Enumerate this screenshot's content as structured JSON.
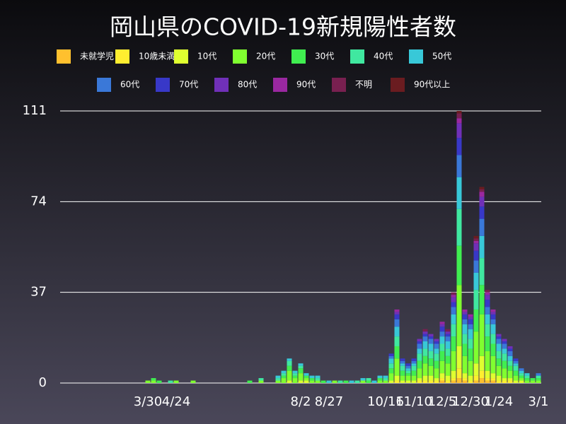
{
  "chart_data": {
    "type": "stacked-bar",
    "title": "岡山県のCOVID-19新規陽性者数",
    "categories": [
      null,
      null,
      null,
      null,
      null,
      null,
      null,
      null,
      null,
      null,
      null,
      null,
      null,
      null,
      null,
      "3/30",
      null,
      null,
      null,
      null,
      "4/24",
      null,
      null,
      null,
      null,
      null,
      null,
      null,
      null,
      null,
      null,
      null,
      null,
      null,
      null,
      null,
      null,
      null,
      null,
      null,
      null,
      null,
      "8/2",
      null,
      null,
      null,
      null,
      "8/27",
      null,
      null,
      null,
      null,
      null,
      null,
      null,
      null,
      null,
      "10/16",
      null,
      null,
      null,
      null,
      "11/10",
      null,
      null,
      null,
      null,
      "12/5",
      null,
      null,
      null,
      null,
      "12/30",
      null,
      null,
      null,
      null,
      "1/24",
      null,
      null,
      null,
      null,
      null,
      null,
      "3/1"
    ],
    "series": [
      {
        "name": "未就学児",
        "color": "#ffc02e",
        "values": [
          0,
          0,
          0,
          0,
          0,
          0,
          0,
          0,
          0,
          0,
          0,
          0,
          0,
          0,
          0,
          0,
          0,
          0,
          0,
          0,
          0,
          0,
          0,
          0,
          0,
          0,
          0,
          0,
          0,
          0,
          0,
          0,
          0,
          0,
          0,
          0,
          0,
          0,
          0,
          0,
          0,
          0,
          0,
          0,
          0,
          0,
          0,
          0,
          0,
          0,
          0,
          0,
          0,
          0,
          0,
          0,
          0,
          0,
          0,
          0,
          0,
          0,
          0,
          0,
          0,
          0,
          0,
          1,
          0,
          1,
          2,
          1,
          0,
          1,
          2,
          1,
          1,
          0,
          0,
          0,
          0,
          0,
          0,
          0,
          0
        ]
      },
      {
        "name": "10歳未満",
        "color": "#ffee30",
        "values": [
          0,
          0,
          0,
          0,
          0,
          0,
          0,
          0,
          0,
          0,
          0,
          0,
          0,
          0,
          0,
          0,
          0,
          0,
          0,
          0,
          0,
          0,
          0,
          0,
          0,
          0,
          0,
          0,
          0,
          0,
          0,
          0,
          0,
          0,
          0,
          0,
          0,
          0,
          0,
          0,
          0,
          0,
          0,
          0,
          0,
          0,
          0,
          0,
          0,
          0,
          0,
          0,
          0,
          0,
          0,
          0,
          0,
          0,
          0,
          1,
          0,
          0,
          0,
          1,
          1,
          1,
          1,
          1,
          1,
          1,
          4,
          1,
          1,
          2,
          3,
          1,
          1,
          1,
          1,
          1,
          0,
          0,
          0,
          0,
          0
        ]
      },
      {
        "name": "10代",
        "color": "#dfff30",
        "values": [
          0,
          0,
          0,
          0,
          0,
          0,
          0,
          0,
          0,
          0,
          0,
          0,
          0,
          0,
          0,
          0,
          0,
          0,
          0,
          0,
          0,
          0,
          0,
          0,
          0,
          0,
          0,
          0,
          0,
          0,
          0,
          0,
          0,
          0,
          0,
          0,
          0,
          0,
          0,
          0,
          1,
          0,
          1,
          1,
          0,
          0,
          0,
          0,
          0,
          0,
          0,
          0,
          0,
          0,
          0,
          0,
          0,
          0,
          1,
          2,
          1,
          1,
          1,
          1,
          2,
          2,
          1,
          2,
          2,
          3,
          9,
          2,
          2,
          5,
          6,
          3,
          2,
          2,
          1,
          1,
          1,
          1,
          0,
          0,
          0
        ]
      },
      {
        "name": "20代",
        "color": "#80ff30",
        "values": [
          0,
          0,
          0,
          0,
          0,
          0,
          0,
          0,
          0,
          0,
          0,
          0,
          0,
          0,
          0,
          1,
          1,
          0,
          0,
          0,
          1,
          0,
          0,
          1,
          0,
          0,
          0,
          0,
          0,
          0,
          0,
          0,
          0,
          0,
          0,
          1,
          0,
          0,
          1,
          2,
          4,
          2,
          3,
          1,
          1,
          1,
          0,
          0,
          1,
          0,
          0,
          0,
          0,
          1,
          0,
          0,
          1,
          1,
          3,
          7,
          2,
          2,
          2,
          4,
          5,
          4,
          4,
          5,
          5,
          8,
          25,
          7,
          6,
          13,
          17,
          8,
          7,
          4,
          4,
          3,
          2,
          1,
          1,
          1,
          1
        ]
      },
      {
        "name": "30代",
        "color": "#40ee50",
        "values": [
          0,
          0,
          0,
          0,
          0,
          0,
          0,
          0,
          0,
          0,
          0,
          0,
          0,
          0,
          0,
          0,
          1,
          1,
          0,
          0,
          0,
          0,
          0,
          0,
          0,
          0,
          0,
          0,
          0,
          0,
          0,
          0,
          0,
          1,
          0,
          0,
          0,
          0,
          0,
          1,
          2,
          1,
          2,
          1,
          1,
          0,
          1,
          0,
          0,
          0,
          1,
          0,
          0,
          0,
          1,
          0,
          1,
          0,
          2,
          5,
          2,
          1,
          2,
          3,
          3,
          3,
          3,
          4,
          3,
          6,
          16,
          5,
          5,
          9,
          12,
          6,
          5,
          3,
          3,
          2,
          2,
          1,
          1,
          1,
          1
        ]
      },
      {
        "name": "40代",
        "color": "#40e8a0",
        "values": [
          0,
          0,
          0,
          0,
          0,
          0,
          0,
          0,
          0,
          0,
          0,
          0,
          0,
          0,
          0,
          0,
          0,
          0,
          0,
          1,
          0,
          0,
          0,
          0,
          0,
          0,
          0,
          0,
          0,
          0,
          0,
          0,
          0,
          0,
          0,
          1,
          0,
          0,
          1,
          1,
          2,
          1,
          1,
          0,
          0,
          1,
          0,
          0,
          0,
          1,
          0,
          0,
          1,
          0,
          1,
          0,
          0,
          1,
          2,
          4,
          2,
          1,
          2,
          3,
          3,
          3,
          3,
          3,
          3,
          5,
          15,
          4,
          4,
          8,
          11,
          5,
          4,
          3,
          3,
          2,
          2,
          1,
          1,
          0,
          1
        ]
      },
      {
        "name": "50代",
        "color": "#38c8d8",
        "values": [
          0,
          0,
          0,
          0,
          0,
          0,
          0,
          0,
          0,
          0,
          0,
          0,
          0,
          0,
          0,
          0,
          0,
          0,
          0,
          0,
          0,
          0,
          0,
          0,
          0,
          0,
          0,
          0,
          0,
          0,
          0,
          0,
          0,
          0,
          0,
          0,
          0,
          0,
          1,
          1,
          1,
          1,
          1,
          1,
          1,
          1,
          0,
          1,
          0,
          0,
          0,
          1,
          0,
          1,
          0,
          1,
          1,
          1,
          2,
          4,
          1,
          1,
          1,
          2,
          3,
          3,
          2,
          3,
          3,
          4,
          13,
          4,
          4,
          7,
          9,
          4,
          4,
          3,
          2,
          2,
          1,
          1,
          1,
          0,
          0
        ]
      },
      {
        "name": "60代",
        "color": "#3a78d8",
        "values": [
          0,
          0,
          0,
          0,
          0,
          0,
          0,
          0,
          0,
          0,
          0,
          0,
          0,
          0,
          0,
          0,
          0,
          0,
          0,
          0,
          0,
          0,
          0,
          0,
          0,
          0,
          0,
          0,
          0,
          0,
          0,
          0,
          0,
          0,
          0,
          0,
          0,
          0,
          0,
          0,
          0,
          0,
          0,
          0,
          0,
          0,
          0,
          0,
          0,
          0,
          0,
          0,
          0,
          0,
          0,
          0,
          0,
          0,
          1,
          3,
          1,
          1,
          1,
          2,
          2,
          2,
          2,
          2,
          2,
          3,
          9,
          2,
          2,
          5,
          7,
          3,
          2,
          2,
          2,
          2,
          1,
          1,
          0,
          0,
          1
        ]
      },
      {
        "name": "70代",
        "color": "#3838c8",
        "values": [
          0,
          0,
          0,
          0,
          0,
          0,
          0,
          0,
          0,
          0,
          0,
          0,
          0,
          0,
          0,
          0,
          0,
          0,
          0,
          0,
          0,
          0,
          0,
          0,
          0,
          0,
          0,
          0,
          0,
          0,
          0,
          0,
          0,
          0,
          0,
          0,
          0,
          0,
          0,
          0,
          0,
          0,
          0,
          0,
          0,
          0,
          0,
          0,
          0,
          0,
          0,
          0,
          0,
          0,
          0,
          0,
          0,
          0,
          1,
          2,
          1,
          1,
          1,
          1,
          1,
          1,
          1,
          2,
          1,
          2,
          7,
          2,
          2,
          4,
          5,
          3,
          2,
          1,
          1,
          1,
          1,
          0,
          0,
          0,
          0
        ]
      },
      {
        "name": "80代",
        "color": "#7030b8",
        "values": [
          0,
          0,
          0,
          0,
          0,
          0,
          0,
          0,
          0,
          0,
          0,
          0,
          0,
          0,
          0,
          0,
          0,
          0,
          0,
          0,
          0,
          0,
          0,
          0,
          0,
          0,
          0,
          0,
          0,
          0,
          0,
          0,
          0,
          0,
          0,
          0,
          0,
          0,
          0,
          0,
          0,
          0,
          0,
          0,
          0,
          0,
          0,
          0,
          0,
          0,
          0,
          0,
          0,
          0,
          0,
          0,
          0,
          0,
          0,
          1,
          0,
          0,
          0,
          1,
          1,
          1,
          1,
          1,
          1,
          2,
          6,
          1,
          1,
          3,
          4,
          2,
          1,
          1,
          1,
          1,
          0,
          0,
          0,
          0,
          0
        ]
      },
      {
        "name": "90代",
        "color": "#9a28a0",
        "values": [
          0,
          0,
          0,
          0,
          0,
          0,
          0,
          0,
          0,
          0,
          0,
          0,
          0,
          0,
          0,
          0,
          0,
          0,
          0,
          0,
          0,
          0,
          0,
          0,
          0,
          0,
          0,
          0,
          0,
          0,
          0,
          0,
          0,
          0,
          0,
          0,
          0,
          0,
          0,
          0,
          0,
          0,
          0,
          0,
          0,
          0,
          0,
          0,
          0,
          0,
          0,
          0,
          0,
          0,
          0,
          0,
          0,
          0,
          0,
          1,
          0,
          0,
          0,
          0,
          0,
          0,
          0,
          1,
          0,
          1,
          2,
          1,
          1,
          1,
          2,
          1,
          1,
          0,
          0,
          0,
          0,
          0,
          0,
          0,
          0
        ]
      },
      {
        "name": "不明",
        "color": "#782050",
        "values": [
          0,
          0,
          0,
          0,
          0,
          0,
          0,
          0,
          0,
          0,
          0,
          0,
          0,
          0,
          0,
          0,
          0,
          0,
          0,
          0,
          0,
          0,
          0,
          0,
          0,
          0,
          0,
          0,
          0,
          0,
          0,
          0,
          0,
          0,
          0,
          0,
          0,
          0,
          0,
          0,
          0,
          0,
          0,
          0,
          0,
          0,
          0,
          0,
          0,
          0,
          0,
          0,
          0,
          0,
          0,
          0,
          0,
          0,
          0,
          0,
          0,
          0,
          0,
          0,
          1,
          0,
          0,
          0,
          1,
          1,
          2,
          0,
          0,
          1,
          1,
          1,
          0,
          0,
          0,
          0,
          0,
          0,
          0,
          0,
          0
        ]
      },
      {
        "name": "90代以上",
        "color": "#6a1c20",
        "values": [
          0,
          0,
          0,
          0,
          0,
          0,
          0,
          0,
          0,
          0,
          0,
          0,
          0,
          0,
          0,
          0,
          0,
          0,
          0,
          0,
          0,
          0,
          0,
          0,
          0,
          0,
          0,
          0,
          0,
          0,
          0,
          0,
          0,
          0,
          0,
          0,
          0,
          0,
          0,
          0,
          0,
          0,
          0,
          0,
          0,
          0,
          0,
          0,
          0,
          0,
          0,
          0,
          0,
          0,
          0,
          0,
          0,
          0,
          0,
          0,
          0,
          0,
          0,
          0,
          0,
          0,
          0,
          0,
          0,
          0,
          1,
          0,
          0,
          1,
          1,
          0,
          0,
          0,
          0,
          0,
          0,
          0,
          0,
          0,
          0
        ]
      }
    ],
    "ylim": [
      0,
      111
    ],
    "yticks": [
      0,
      37,
      74,
      111
    ],
    "grid": true
  }
}
